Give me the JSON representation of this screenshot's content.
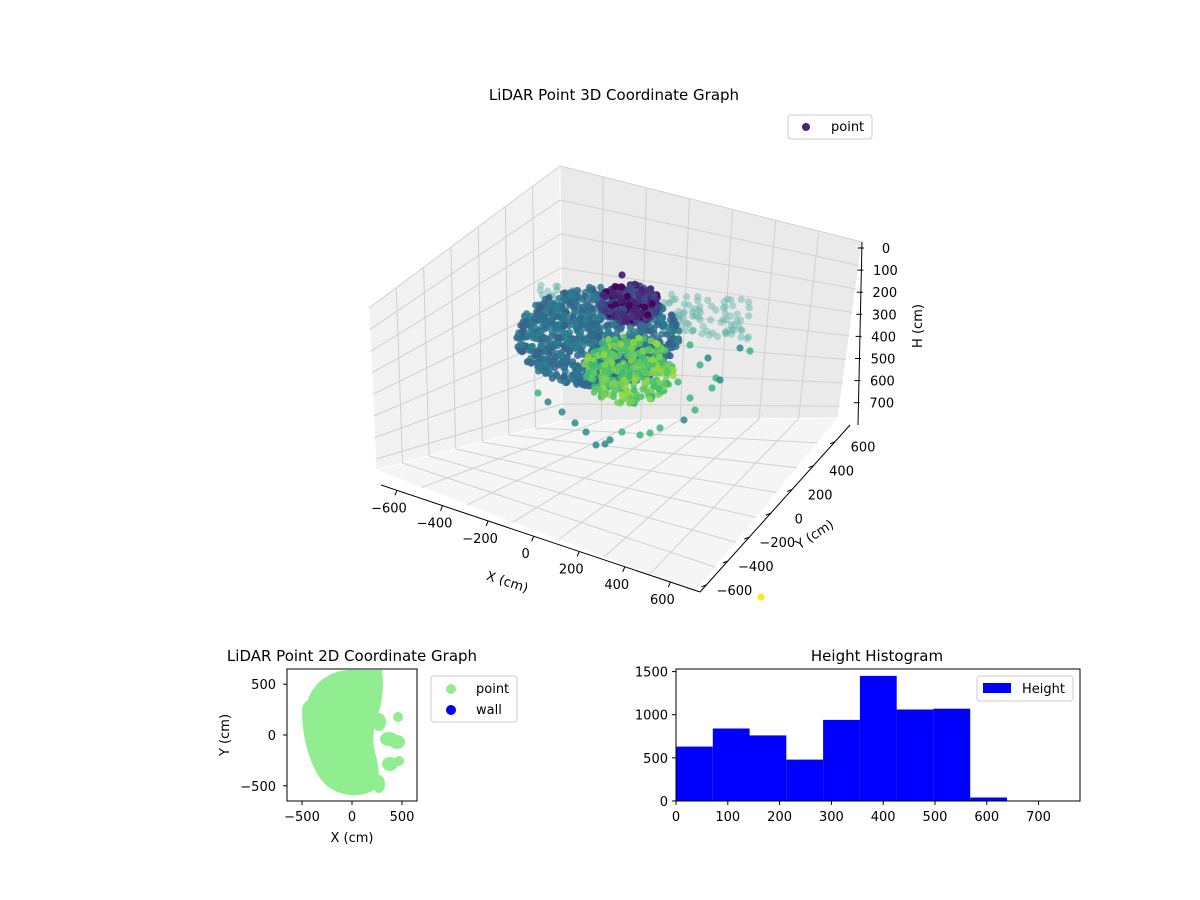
{
  "colors": {
    "point_3d_legend": "#482475",
    "point_2d": "#90ee90",
    "wall": "#0000ff",
    "histogram": "#0000ff",
    "stray_point": "#fde725"
  },
  "chart_data": [
    {
      "type": "scatter",
      "projection": "3d",
      "title": "LiDAR Point 3D Coordinate Graph",
      "xlabel": "X (cm)",
      "ylabel": "Y (cm)",
      "zlabel": "H (cm)",
      "xlim": [
        -600,
        600
      ],
      "ylim": [
        -600,
        600
      ],
      "zlim": [
        0,
        750
      ],
      "z_inverted": true,
      "x_ticks": [
        "−600",
        "−400",
        "−200",
        "0",
        "200",
        "400",
        "600"
      ],
      "y_ticks": [
        "−600",
        "−400",
        "−200",
        "0",
        "200",
        "400",
        "600"
      ],
      "z_ticks": [
        "0",
        "100",
        "200",
        "300",
        "400",
        "500",
        "600",
        "700"
      ],
      "colormap": "viridis",
      "legend": {
        "label": "point",
        "placement": "top-right"
      },
      "grid": true
    },
    {
      "type": "scatter",
      "title": "LiDAR Point 2D Coordinate Graph",
      "xlabel": "X (cm)",
      "ylabel": "Y (cm)",
      "xlim": [
        -650,
        650
      ],
      "ylim": [
        -650,
        650
      ],
      "x_ticks": [
        "−500",
        "0",
        "500"
      ],
      "y_ticks": [
        "−500",
        "0",
        "500"
      ],
      "series": [
        {
          "name": "point",
          "color": "#90ee90"
        },
        {
          "name": "wall",
          "color": "#0000ff"
        }
      ],
      "legend": {
        "placement": "outside-right"
      },
      "grid": false
    },
    {
      "type": "bar",
      "title": "Height Histogram",
      "xlabel": "",
      "ylabel": "",
      "bin_edges": [
        0,
        71,
        142,
        213,
        284,
        355,
        426,
        497,
        568,
        639
      ],
      "values": [
        630,
        840,
        760,
        480,
        940,
        1450,
        1060,
        1070,
        40
      ],
      "xlim": [
        0,
        780
      ],
      "ylim": [
        0,
        1530
      ],
      "x_ticks": [
        "0",
        "100",
        "200",
        "300",
        "400",
        "500",
        "600",
        "700"
      ],
      "y_ticks": [
        "0",
        "500",
        "1000",
        "1500"
      ],
      "series": [
        {
          "name": "Height",
          "color": "#0000ff"
        }
      ],
      "legend": {
        "label": "Height",
        "placement": "top-right"
      },
      "grid": false
    }
  ]
}
